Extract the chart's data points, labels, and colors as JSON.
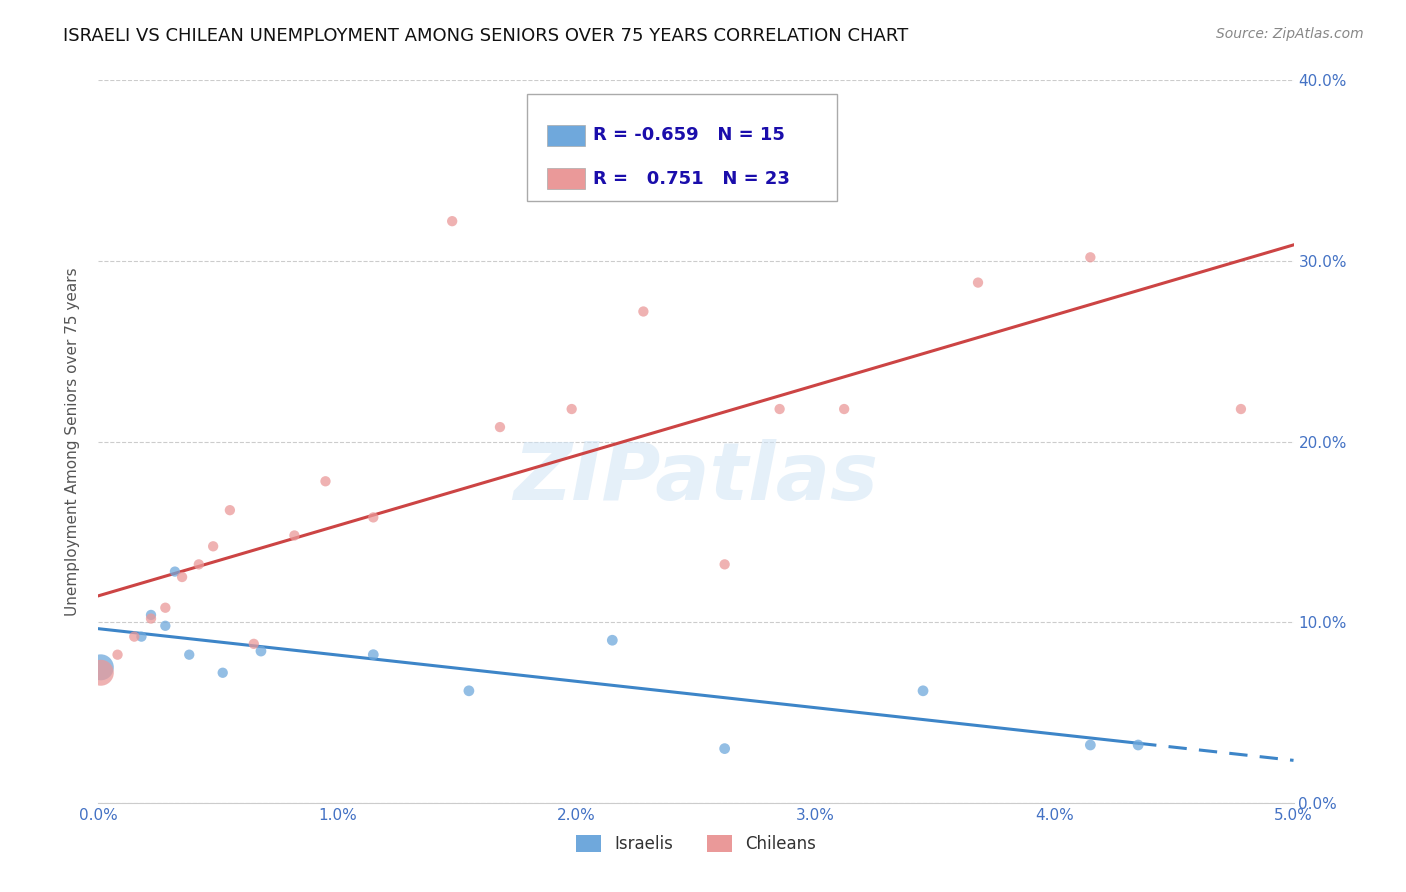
{
  "title": "ISRAELI VS CHILEAN UNEMPLOYMENT AMONG SENIORS OVER 75 YEARS CORRELATION CHART",
  "source": "Source: ZipAtlas.com",
  "ylabel": "Unemployment Among Seniors over 75 years",
  "xlabel_ticks": [
    "0.0%",
    "1.0%",
    "2.0%",
    "3.0%",
    "4.0%",
    "5.0%"
  ],
  "ylabel_ticks": [
    "0.0%",
    "10.0%",
    "20.0%",
    "30.0%",
    "40.0%"
  ],
  "xlim": [
    0.0,
    0.05
  ],
  "ylim": [
    0.0,
    0.4
  ],
  "israeli_R": -0.659,
  "israeli_N": 15,
  "chilean_R": 0.751,
  "chilean_N": 23,
  "israeli_color": "#6fa8dc",
  "chilean_color": "#ea9999",
  "israeli_line_color": "#3d85c8",
  "chilean_line_color": "#cc4444",
  "watermark": "ZIPatlas",
  "israeli_points_x": [
    0.0001,
    0.0018,
    0.0022,
    0.0028,
    0.0032,
    0.0038,
    0.0052,
    0.0068,
    0.0115,
    0.0155,
    0.0215,
    0.0262,
    0.0345,
    0.0415,
    0.0435
  ],
  "israeli_points_y": [
    0.075,
    0.092,
    0.104,
    0.098,
    0.128,
    0.082,
    0.072,
    0.084,
    0.082,
    0.062,
    0.09,
    0.03,
    0.062,
    0.032,
    0.032
  ],
  "israeli_sizes": [
    350,
    55,
    55,
    55,
    55,
    55,
    55,
    60,
    60,
    60,
    60,
    60,
    60,
    60,
    60
  ],
  "chilean_points_x": [
    0.0001,
    0.0008,
    0.0015,
    0.0022,
    0.0028,
    0.0035,
    0.0042,
    0.0048,
    0.0055,
    0.0065,
    0.0082,
    0.0095,
    0.0115,
    0.0148,
    0.0168,
    0.0198,
    0.0228,
    0.0262,
    0.0285,
    0.0312,
    0.0368,
    0.0415,
    0.0478
  ],
  "chilean_points_y": [
    0.072,
    0.082,
    0.092,
    0.102,
    0.108,
    0.125,
    0.132,
    0.142,
    0.162,
    0.088,
    0.148,
    0.178,
    0.158,
    0.322,
    0.208,
    0.218,
    0.272,
    0.132,
    0.218,
    0.218,
    0.288,
    0.302,
    0.218
  ],
  "chilean_sizes": [
    350,
    55,
    55,
    55,
    55,
    55,
    55,
    55,
    55,
    55,
    55,
    55,
    55,
    55,
    55,
    55,
    55,
    55,
    55,
    55,
    55,
    55,
    55
  ],
  "background_color": "#ffffff",
  "grid_color": "#cccccc",
  "legend_israeli_text": "R = -0.659   N = 15",
  "legend_chilean_text": "R =   0.751   N = 23"
}
